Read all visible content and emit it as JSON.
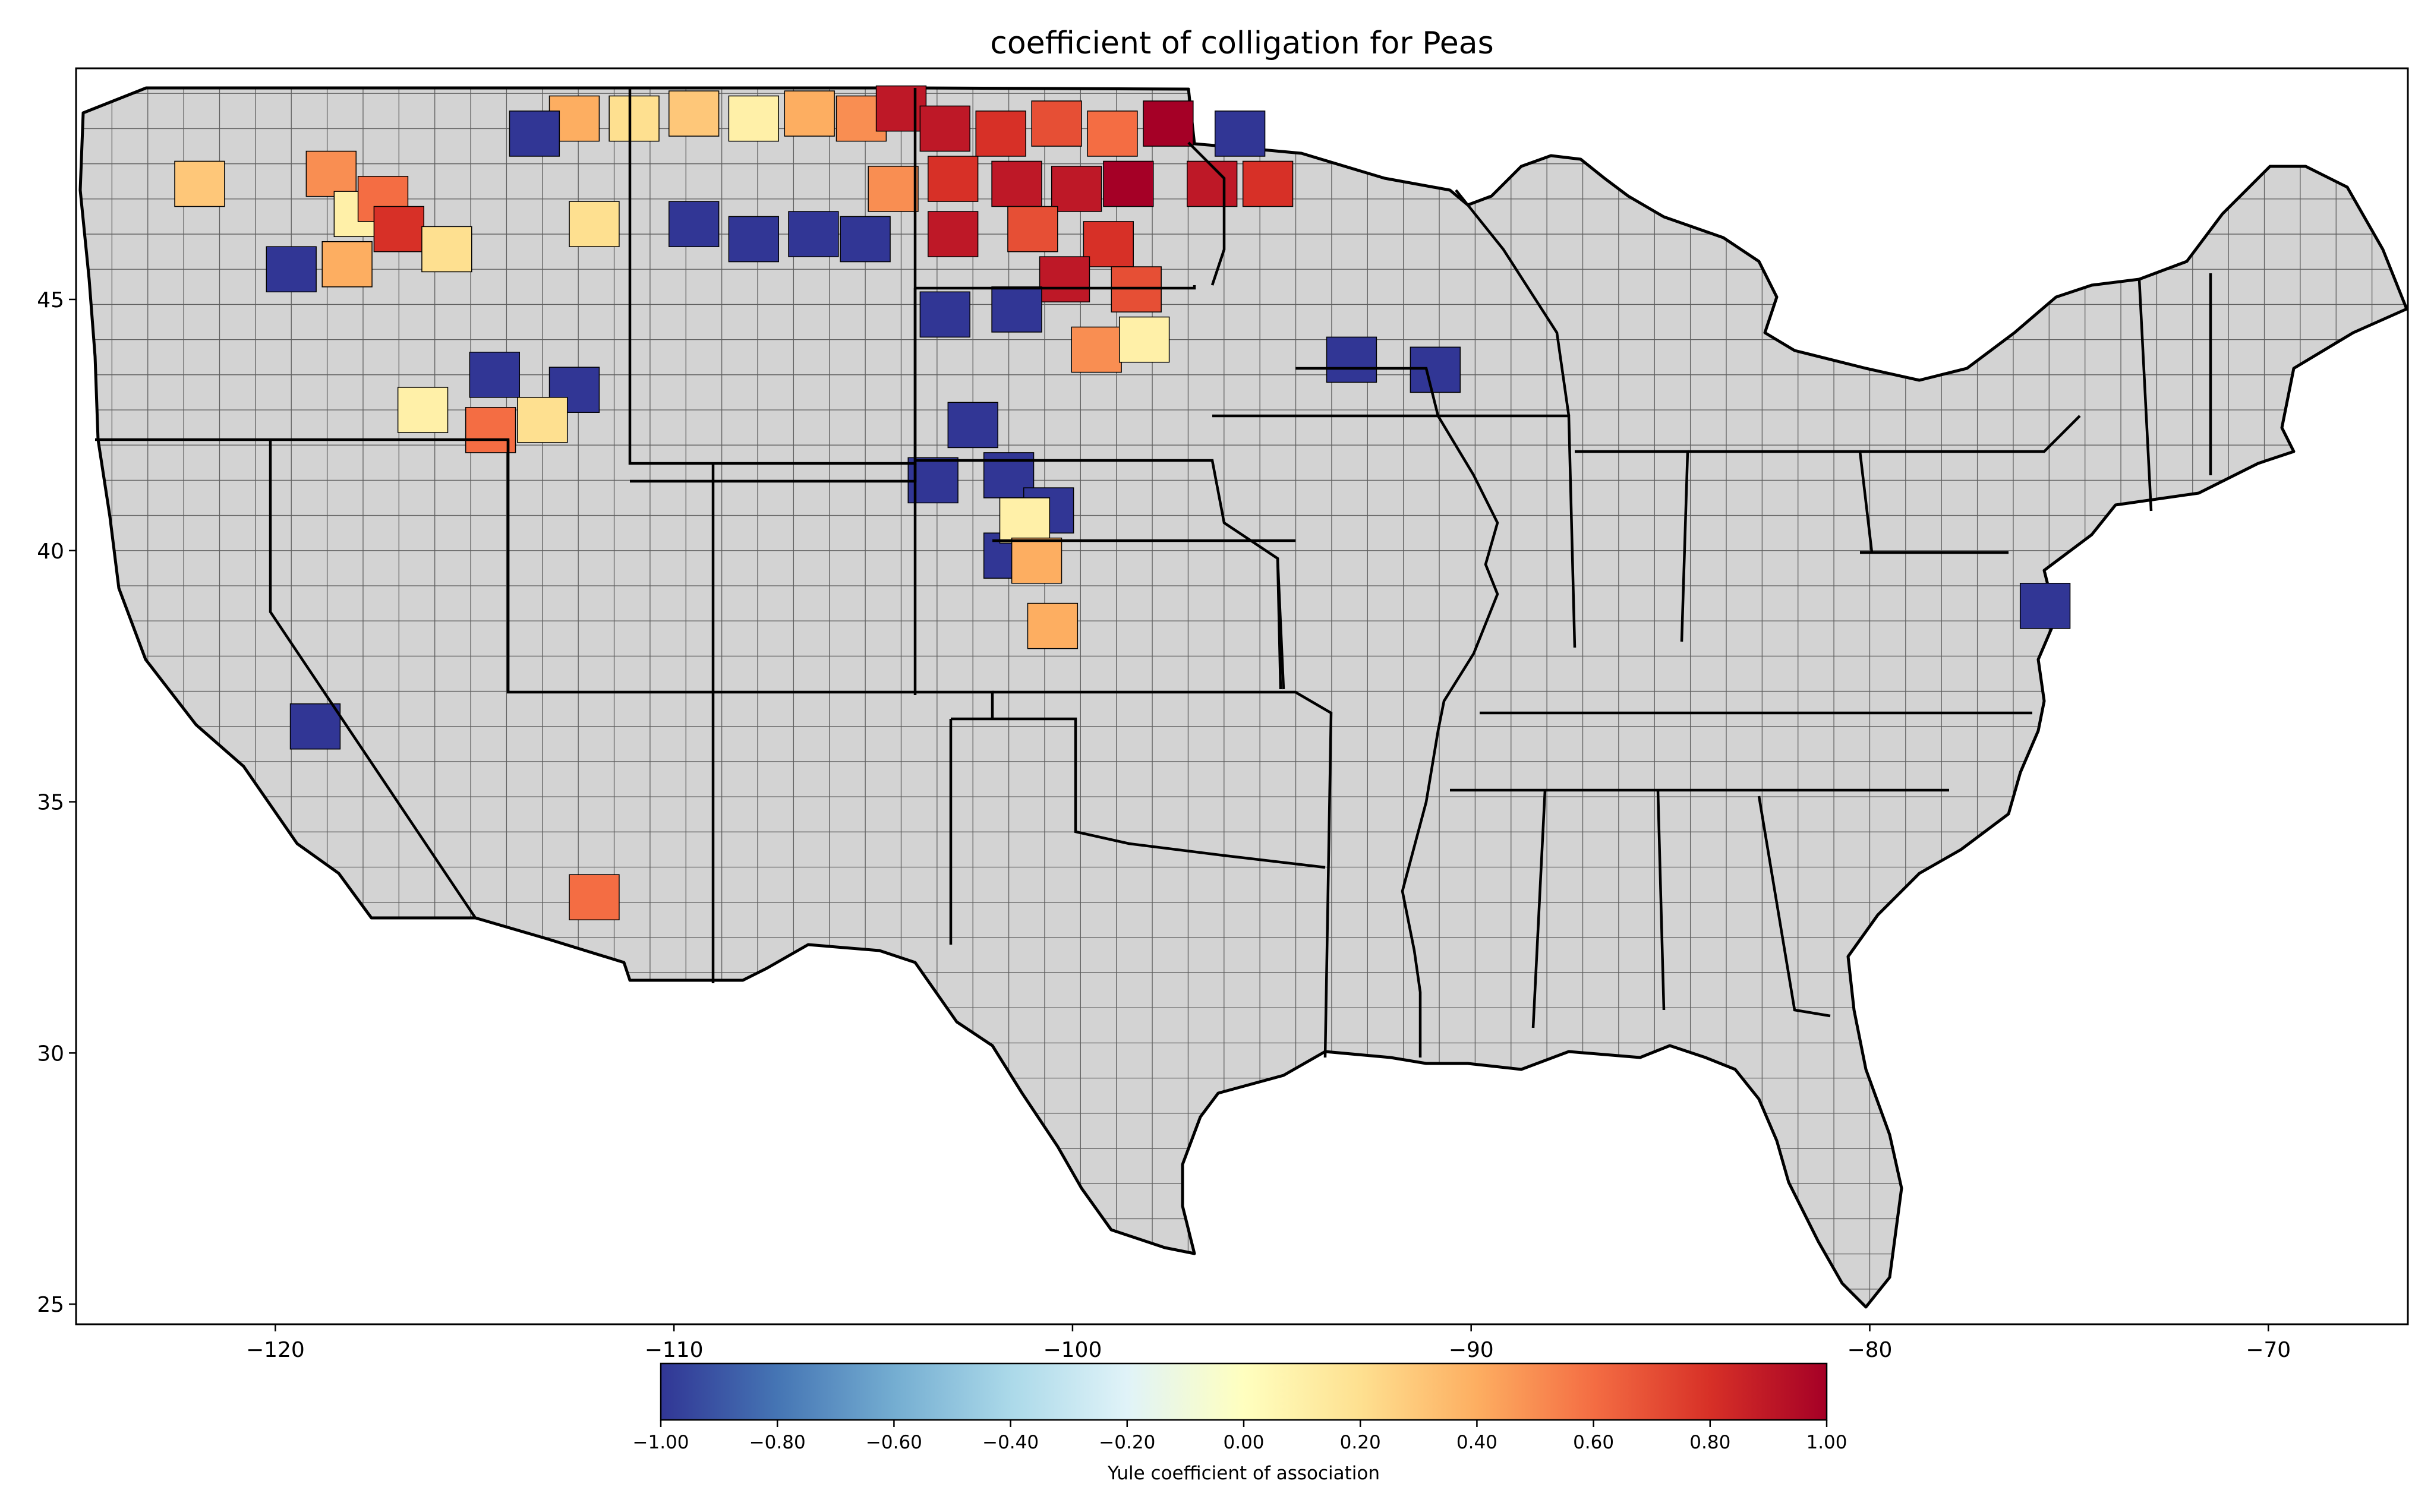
{
  "title": "coefficient of colligation for Peas",
  "map": {
    "projection": "plate-carree",
    "background_color": "#d3d3d3",
    "county_border_color": "#000000",
    "state_border_color": "#000000",
    "x_ticks": [
      -120,
      -110,
      -100,
      -90,
      -80,
      -70
    ],
    "y_ticks": [
      25,
      30,
      35,
      40,
      45
    ],
    "x_tick_labels": [
      "−120",
      "−110",
      "−100",
      "−90",
      "−80",
      "−70"
    ],
    "y_tick_labels": [
      "25",
      "30",
      "35",
      "40",
      "45"
    ],
    "xlim": [
      -125.0,
      -66.5
    ],
    "ylim": [
      24.6,
      49.6
    ]
  },
  "colorbar": {
    "label": "Yule coefficient of association",
    "colormap": "RdYlBu_r",
    "range": [
      -1.0,
      1.0
    ],
    "ticks": [
      -1.0,
      -0.8,
      -0.6,
      -0.4,
      -0.2,
      0.0,
      0.2,
      0.4,
      0.6,
      0.8,
      1.0
    ],
    "tick_labels": [
      "−1.00",
      "−0.80",
      "−0.60",
      "−0.40",
      "−0.20",
      "0.00",
      "0.20",
      "0.40",
      "0.60",
      "0.80",
      "1.00"
    ],
    "stops": [
      "#313695",
      "#4575b4",
      "#74add1",
      "#abd9e9",
      "#e0f3f8",
      "#ffffbf",
      "#fee090",
      "#fdae61",
      "#f46d43",
      "#d73027",
      "#a50026"
    ]
  },
  "chart_data": {
    "type": "heatmap",
    "title": "coefficient of colligation for Peas",
    "colorbar_label": "Yule coefficient of association",
    "value_range": [
      -1.0,
      1.0
    ],
    "regions": [
      {
        "lon": -121.9,
        "lat": 47.3,
        "value": 0.3
      },
      {
        "lon": -118.6,
        "lat": 47.5,
        "value": 0.5
      },
      {
        "lon": -117.9,
        "lat": 46.7,
        "value": 0.1
      },
      {
        "lon": -117.3,
        "lat": 47.0,
        "value": 0.6
      },
      {
        "lon": -116.9,
        "lat": 46.4,
        "value": 0.8
      },
      {
        "lon": -115.7,
        "lat": 46.0,
        "value": 0.2
      },
      {
        "lon": -119.6,
        "lat": 45.6,
        "value": -1.0
      },
      {
        "lon": -118.2,
        "lat": 45.7,
        "value": 0.4
      },
      {
        "lon": -112.5,
        "lat": 48.6,
        "value": 0.4
      },
      {
        "lon": -111.0,
        "lat": 48.6,
        "value": 0.2
      },
      {
        "lon": -109.5,
        "lat": 48.7,
        "value": 0.3
      },
      {
        "lon": -108.0,
        "lat": 48.6,
        "value": 0.1
      },
      {
        "lon": -106.6,
        "lat": 48.7,
        "value": 0.4
      },
      {
        "lon": -105.3,
        "lat": 48.6,
        "value": 0.5
      },
      {
        "lon": -104.3,
        "lat": 48.8,
        "value": 0.9
      },
      {
        "lon": -113.5,
        "lat": 48.3,
        "value": -1.0
      },
      {
        "lon": -109.5,
        "lat": 46.5,
        "value": -1.0
      },
      {
        "lon": -108.0,
        "lat": 46.2,
        "value": -1.0
      },
      {
        "lon": -106.5,
        "lat": 46.3,
        "value": -1.0
      },
      {
        "lon": -105.2,
        "lat": 46.2,
        "value": -1.0
      },
      {
        "lon": -112.0,
        "lat": 46.5,
        "value": 0.2
      },
      {
        "lon": -104.5,
        "lat": 47.2,
        "value": 0.5
      },
      {
        "lon": -103.2,
        "lat": 48.4,
        "value": 0.9
      },
      {
        "lon": -101.8,
        "lat": 48.3,
        "value": 0.8
      },
      {
        "lon": -100.4,
        "lat": 48.5,
        "value": 0.7
      },
      {
        "lon": -99.0,
        "lat": 48.3,
        "value": 0.6
      },
      {
        "lon": -103.0,
        "lat": 47.4,
        "value": 0.8
      },
      {
        "lon": -101.4,
        "lat": 47.3,
        "value": 0.9
      },
      {
        "lon": -99.9,
        "lat": 47.2,
        "value": 0.9
      },
      {
        "lon": -98.6,
        "lat": 47.3,
        "value": 1.0
      },
      {
        "lon": -97.6,
        "lat": 48.5,
        "value": 1.0
      },
      {
        "lon": -103.0,
        "lat": 46.3,
        "value": 0.9
      },
      {
        "lon": -101.0,
        "lat": 46.4,
        "value": 0.7
      },
      {
        "lon": -99.1,
        "lat": 46.1,
        "value": 0.8
      },
      {
        "lon": -100.2,
        "lat": 45.4,
        "value": 0.9
      },
      {
        "lon": -98.4,
        "lat": 45.2,
        "value": 0.7
      },
      {
        "lon": -103.2,
        "lat": 44.7,
        "value": -1.0
      },
      {
        "lon": -101.4,
        "lat": 44.8,
        "value": -1.0
      },
      {
        "lon": -99.4,
        "lat": 44.0,
        "value": 0.5
      },
      {
        "lon": -98.2,
        "lat": 44.2,
        "value": 0.1
      },
      {
        "lon": -102.5,
        "lat": 42.5,
        "value": -1.0
      },
      {
        "lon": -101.6,
        "lat": 41.5,
        "value": -1.0
      },
      {
        "lon": -103.5,
        "lat": 41.4,
        "value": -1.0
      },
      {
        "lon": -100.6,
        "lat": 40.8,
        "value": -1.0
      },
      {
        "lon": -101.6,
        "lat": 39.9,
        "value": -1.0
      },
      {
        "lon": -101.2,
        "lat": 40.6,
        "value": 0.1
      },
      {
        "lon": -100.9,
        "lat": 39.8,
        "value": 0.4
      },
      {
        "lon": -100.5,
        "lat": 38.5,
        "value": 0.4
      },
      {
        "lon": -96.5,
        "lat": 47.3,
        "value": 0.9
      },
      {
        "lon": -95.1,
        "lat": 47.3,
        "value": 0.8
      },
      {
        "lon": -95.8,
        "lat": 48.3,
        "value": -1.0
      },
      {
        "lon": -93.0,
        "lat": 43.8,
        "value": -1.0
      },
      {
        "lon": -90.9,
        "lat": 43.6,
        "value": -1.0
      },
      {
        "lon": -114.5,
        "lat": 43.5,
        "value": -1.0
      },
      {
        "lon": -112.5,
        "lat": 43.2,
        "value": -1.0
      },
      {
        "lon": -116.3,
        "lat": 42.8,
        "value": 0.1
      },
      {
        "lon": -114.6,
        "lat": 42.4,
        "value": 0.6
      },
      {
        "lon": -113.3,
        "lat": 42.6,
        "value": 0.2
      },
      {
        "lon": -119.0,
        "lat": 36.5,
        "value": -1.0
      },
      {
        "lon": -112.0,
        "lat": 33.1,
        "value": 0.6
      },
      {
        "lon": -75.6,
        "lat": 38.9,
        "value": -1.0
      }
    ]
  }
}
